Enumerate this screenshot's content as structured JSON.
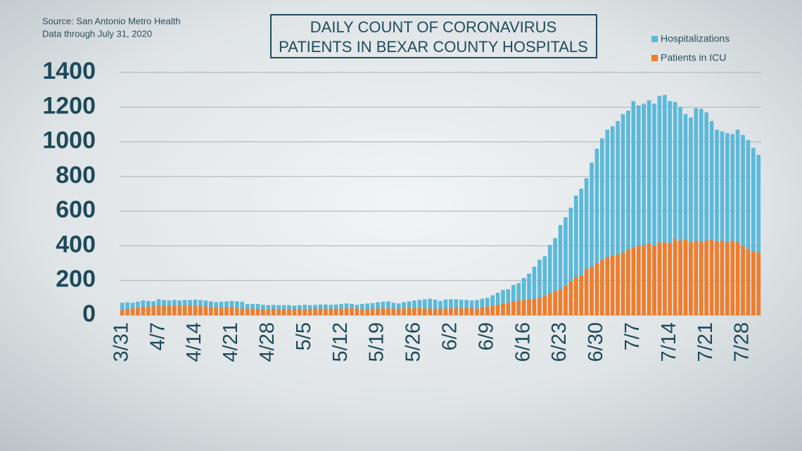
{
  "chart_data": {
    "type": "bar",
    "title": [
      "DAILY COUNT OF CORONAVIRUS",
      "PATIENTS IN BEXAR COUNTY HOSPITALS"
    ],
    "source": "Source: San Antonio Metro Health",
    "note": "Data through July 31, 2020",
    "categories": [
      "3/31",
      null,
      null,
      null,
      null,
      null,
      null,
      "4/7",
      null,
      null,
      null,
      null,
      null,
      null,
      "4/14",
      null,
      null,
      null,
      null,
      null,
      null,
      "4/21",
      null,
      null,
      null,
      null,
      null,
      null,
      "4/28",
      null,
      null,
      null,
      null,
      null,
      null,
      "5/5",
      null,
      null,
      null,
      null,
      null,
      null,
      "5/12",
      null,
      null,
      null,
      null,
      null,
      null,
      "5/19",
      null,
      null,
      null,
      null,
      null,
      null,
      "5/26",
      null,
      null,
      null,
      null,
      null,
      null,
      "6/2",
      null,
      null,
      null,
      null,
      null,
      null,
      "6/9",
      null,
      null,
      null,
      null,
      null,
      null,
      "6/16",
      null,
      null,
      null,
      null,
      null,
      null,
      "6/23",
      null,
      null,
      null,
      null,
      null,
      null,
      "6/30",
      null,
      null,
      null,
      null,
      null,
      null,
      "7/7",
      null,
      null,
      null,
      null,
      null,
      null,
      "7/14",
      null,
      null,
      null,
      null,
      null,
      null,
      "7/21",
      null,
      null,
      null,
      null,
      null,
      null,
      "7/28",
      null,
      null,
      null
    ],
    "series": [
      {
        "name": "Hospitalizations",
        "color": "#5bb9d9",
        "values": [
          72,
          75,
          72,
          78,
          85,
          82,
          80,
          92,
          88,
          85,
          88,
          85,
          88,
          88,
          90,
          88,
          85,
          80,
          75,
          78,
          80,
          82,
          80,
          78,
          65,
          65,
          65,
          60,
          58,
          60,
          58,
          58,
          58,
          55,
          58,
          60,
          58,
          60,
          62,
          62,
          60,
          62,
          65,
          68,
          65,
          60,
          65,
          68,
          70,
          75,
          78,
          80,
          72,
          68,
          75,
          80,
          85,
          88,
          92,
          95,
          90,
          82,
          90,
          92,
          92,
          90,
          88,
          85,
          88,
          95,
          100,
          115,
          130,
          145,
          150,
          175,
          185,
          215,
          240,
          280,
          320,
          340,
          405,
          445,
          520,
          565,
          620,
          690,
          730,
          790,
          880,
          960,
          1020,
          1070,
          1090,
          1120,
          1160,
          1180,
          1235,
          1210,
          1220,
          1240,
          1220,
          1265,
          1270,
          1235,
          1230,
          1200,
          1160,
          1140,
          1195,
          1190,
          1170,
          1120,
          1070,
          1060,
          1050,
          1045,
          1070,
          1040,
          1010,
          965,
          925
        ]
      },
      {
        "name": "Patients in ICU",
        "color": "#f07d2b",
        "values": [
          30,
          35,
          40,
          42,
          48,
          50,
          52,
          55,
          55,
          52,
          55,
          55,
          58,
          55,
          55,
          52,
          50,
          48,
          45,
          45,
          46,
          48,
          40,
          38,
          38,
          38,
          36,
          35,
          35,
          36,
          35,
          35,
          36,
          35,
          35,
          36,
          36,
          38,
          38,
          38,
          36,
          38,
          38,
          40,
          40,
          38,
          35,
          35,
          38,
          38,
          40,
          40,
          38,
          38,
          40,
          42,
          42,
          42,
          40,
          38,
          36,
          38,
          38,
          40,
          40,
          40,
          42,
          40,
          38,
          45,
          50,
          55,
          60,
          65,
          72,
          78,
          85,
          88,
          92,
          95,
          100,
          110,
          125,
          140,
          150,
          170,
          195,
          220,
          230,
          265,
          280,
          300,
          320,
          335,
          345,
          350,
          360,
          380,
          390,
          400,
          400,
          415,
          400,
          420,
          420,
          415,
          440,
          430,
          435,
          420,
          430,
          425,
          430,
          435,
          425,
          430,
          420,
          430,
          420,
          400,
          380,
          370,
          362
        ]
      }
    ],
    "ylim": [
      0,
      1400
    ],
    "yticks": [
      0,
      200,
      400,
      600,
      800,
      1000,
      1200,
      1400
    ],
    "grid": true
  }
}
